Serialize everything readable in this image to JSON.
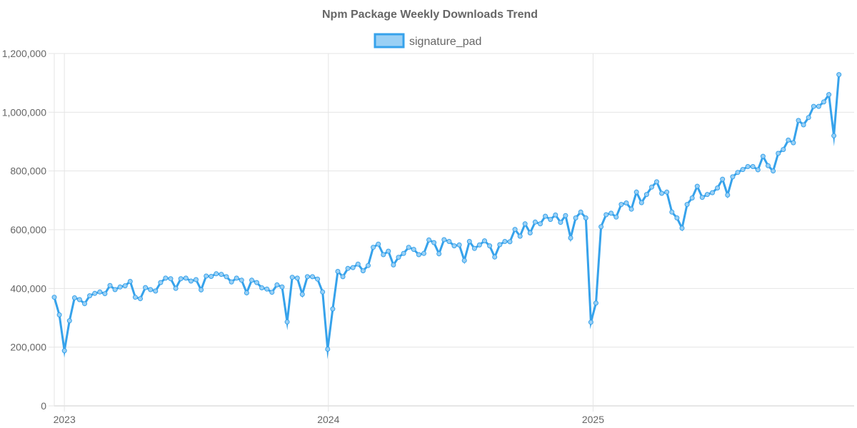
{
  "chart_data": {
    "type": "line",
    "title": "Npm Package Weekly Downloads Trend",
    "xlabel": "",
    "ylabel": "",
    "legend_position": "top",
    "grid": true,
    "ylim": [
      0,
      1200000
    ],
    "yticks": [
      0,
      200000,
      400000,
      600000,
      800000,
      1000000,
      1200000
    ],
    "ytick_labels": [
      "0",
      "200,000",
      "400,000",
      "600,000",
      "800,000",
      "1,000,000",
      "1,200,000"
    ],
    "xlim": [
      "2022-12-18",
      "2025-12-28"
    ],
    "xticks": [
      "2023-01-01",
      "2024-01-01",
      "2025-01-01"
    ],
    "xtick_labels": [
      "2023",
      "2024",
      "2025"
    ],
    "colors": {
      "line": "#36A2EB",
      "fill": "#9AD0F5"
    },
    "series": [
      {
        "name": "signature_pad",
        "x_start": "2022-12-18",
        "interval_days": 7,
        "values": [
          370000,
          310000,
          188000,
          290000,
          368000,
          362000,
          348000,
          375000,
          383000,
          388000,
          382000,
          410000,
          396000,
          405000,
          409000,
          424000,
          370000,
          365000,
          403000,
          396000,
          391000,
          420000,
          435000,
          433000,
          400000,
          433000,
          435000,
          425000,
          430000,
          395000,
          442000,
          441000,
          450000,
          448000,
          440000,
          422000,
          435000,
          428000,
          385000,
          428000,
          420000,
          402000,
          398000,
          387000,
          412000,
          405000,
          286000,
          438000,
          435000,
          380000,
          440000,
          440000,
          432000,
          388000,
          193000,
          330000,
          458000,
          440000,
          468000,
          471000,
          483000,
          460000,
          478000,
          540000,
          551000,
          515000,
          527000,
          480000,
          506000,
          519000,
          540000,
          533000,
          515000,
          519000,
          565000,
          556000,
          518000,
          566000,
          560000,
          545000,
          548000,
          495000,
          560000,
          536000,
          548000,
          562000,
          545000,
          507000,
          549000,
          560000,
          559000,
          601000,
          578000,
          620000,
          589000,
          626000,
          620000,
          646000,
          635000,
          650000,
          625000,
          648000,
          572000,
          640000,
          660000,
          640000,
          285000,
          350000,
          610000,
          651000,
          656000,
          643000,
          686000,
          691000,
          670000,
          728000,
          692000,
          720000,
          745000,
          763000,
          724000,
          728000,
          660000,
          640000,
          605000,
          686000,
          708000,
          748000,
          710000,
          720000,
          726000,
          742000,
          772000,
          718000,
          780000,
          795000,
          805000,
          815000,
          815000,
          804000,
          850000,
          818000,
          800000,
          860000,
          873000,
          905000,
          896000,
          972000,
          957000,
          982000,
          1020000,
          1020000,
          1035000,
          1060000,
          920000,
          1128000
        ]
      }
    ]
  }
}
